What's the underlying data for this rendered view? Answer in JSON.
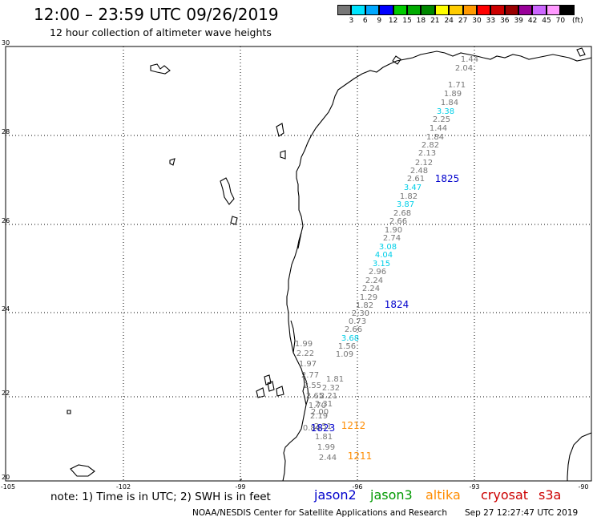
{
  "header": {
    "title": "12:00 – 23:59 UTC 09/26/2019",
    "subtitle": "12 hour collection of altimeter wave heights"
  },
  "scale": {
    "colors": [
      "#777777",
      "#00e5ff",
      "#00a8ff",
      "#0000ff",
      "#00cc00",
      "#00aa00",
      "#008800",
      "#ffff00",
      "#ffcc00",
      "#ff9900",
      "#ff0000",
      "#cc0000",
      "#990000",
      "#990099",
      "#cc66ff",
      "#ff99ff",
      "#000000"
    ],
    "labels": [
      "3",
      "6",
      "9",
      "12",
      "15",
      "18",
      "21",
      "24",
      "27",
      "30",
      "33",
      "36",
      "39",
      "42",
      "45",
      "70",
      "(ft)"
    ]
  },
  "axes": {
    "lat_labels": [
      "30",
      "28",
      "26",
      "24",
      "22",
      "20"
    ],
    "lon_labels": [
      "-105",
      "-102",
      "-99",
      "-96",
      "-93",
      "-90"
    ]
  },
  "pass_labels": [
    {
      "text": "1825",
      "color": "#0000cc"
    },
    {
      "text": "1824",
      "color": "#0000cc"
    },
    {
      "text": "1823",
      "color": "#0000cc"
    },
    {
      "text": "1212",
      "color": "#ff8c00"
    },
    {
      "text": "1211",
      "color": "#ff8c00"
    }
  ],
  "readings": [
    {
      "text": "1.44",
      "color": "#777777"
    },
    {
      "text": "2.04",
      "color": "#777777"
    },
    {
      "text": "1.71",
      "color": "#777777"
    },
    {
      "text": "1.89",
      "color": "#777777"
    },
    {
      "text": "1.84",
      "color": "#777777"
    },
    {
      "text": "3.38",
      "color": "#00cfe8"
    },
    {
      "text": "2.25",
      "color": "#777777"
    },
    {
      "text": "1.44",
      "color": "#777777"
    },
    {
      "text": "1.84",
      "color": "#777777"
    },
    {
      "text": "2.82",
      "color": "#777777"
    },
    {
      "text": "2.13",
      "color": "#777777"
    },
    {
      "text": "2.12",
      "color": "#777777"
    },
    {
      "text": "2.48",
      "color": "#777777"
    },
    {
      "text": "2.61",
      "color": "#777777"
    },
    {
      "text": "3.47",
      "color": "#00cfe8"
    },
    {
      "text": "1.82",
      "color": "#777777"
    },
    {
      "text": "3.87",
      "color": "#00cfe8"
    },
    {
      "text": "2.68",
      "color": "#777777"
    },
    {
      "text": "2.66",
      "color": "#777777"
    },
    {
      "text": "1.90",
      "color": "#777777"
    },
    {
      "text": "2.74",
      "color": "#777777"
    },
    {
      "text": "3.08",
      "color": "#00cfe8"
    },
    {
      "text": "4.04",
      "color": "#00cfe8"
    },
    {
      "text": "3.15",
      "color": "#00cfe8"
    },
    {
      "text": "2.96",
      "color": "#777777"
    },
    {
      "text": "2.24",
      "color": "#777777"
    },
    {
      "text": "2.24",
      "color": "#777777"
    },
    {
      "text": "1.29",
      "color": "#777777"
    },
    {
      "text": "1.82",
      "color": "#777777"
    },
    {
      "text": "2.30",
      "color": "#777777"
    },
    {
      "text": "0.73",
      "color": "#777777"
    },
    {
      "text": "2.66",
      "color": "#777777"
    },
    {
      "text": "3.68",
      "color": "#00cfe8"
    },
    {
      "text": "1.56",
      "color": "#777777"
    },
    {
      "text": "1.09",
      "color": "#777777"
    },
    {
      "text": "1.99",
      "color": "#777777"
    },
    {
      "text": "2.22",
      "color": "#777777"
    },
    {
      "text": "1.97",
      "color": "#777777"
    },
    {
      "text": "2.77",
      "color": "#777777"
    },
    {
      "text": "1.81",
      "color": "#777777"
    },
    {
      "text": "2.55",
      "color": "#777777"
    },
    {
      "text": "2.32",
      "color": "#777777"
    },
    {
      "text": "2.65",
      "color": "#777777"
    },
    {
      "text": "2.21",
      "color": "#777777"
    },
    {
      "text": "1.70",
      "color": "#777777"
    },
    {
      "text": "2.31",
      "color": "#777777"
    },
    {
      "text": "2.00",
      "color": "#777777"
    },
    {
      "text": "2.19",
      "color": "#777777"
    },
    {
      "text": "2.51",
      "color": "#777777"
    },
    {
      "text": "0.84",
      "color": "#777777"
    },
    {
      "text": "1.81",
      "color": "#777777"
    },
    {
      "text": "1.99",
      "color": "#777777"
    },
    {
      "text": "2.44",
      "color": "#777777"
    }
  ],
  "footer": {
    "note": "note:  1) Time is in UTC;  2) SWH is in feet",
    "missions": [
      {
        "text": "jason2",
        "color": "#0000cc"
      },
      {
        "text": "jason3",
        "color": "#009900"
      },
      {
        "text": "altika",
        "color": "#ff8c00"
      },
      {
        "text": "cryosat",
        "color": "#cc0000"
      },
      {
        "text": "s3a",
        "color": "#cc0000"
      }
    ],
    "credit": "NOAA/NESDIS Center for Satellite Applications and Research",
    "timestamp": "Sep 27 12:27:47 UTC 2019"
  }
}
